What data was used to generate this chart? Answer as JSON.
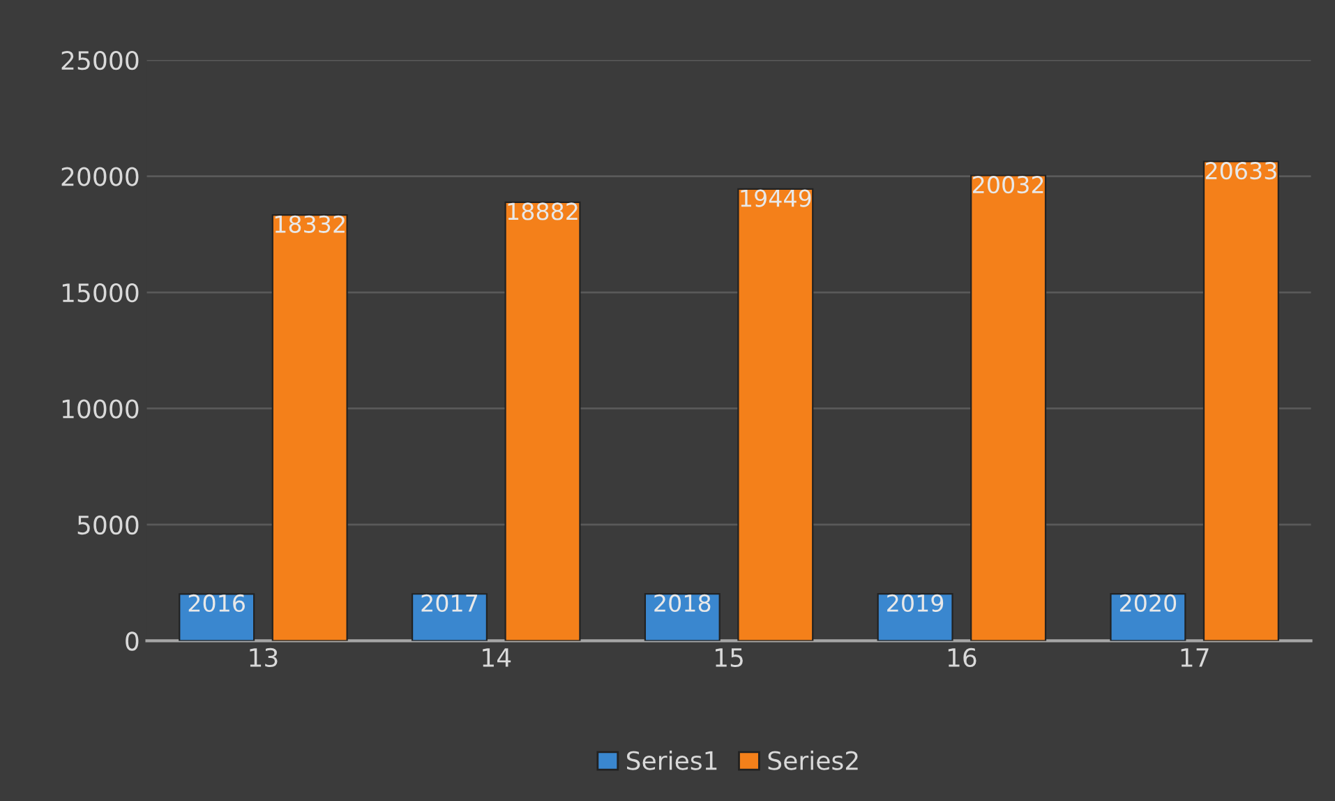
{
  "chart_data": {
    "type": "bar",
    "categories": [
      "13",
      "14",
      "15",
      "16",
      "17"
    ],
    "series": [
      {
        "name": "Series1",
        "color": "#3a87cf",
        "values": [
          2016,
          2017,
          2018,
          2019,
          2020
        ]
      },
      {
        "name": "Series2",
        "color": "#f4801a",
        "values": [
          18332,
          18882,
          19449,
          20032,
          20633
        ]
      }
    ],
    "ylim": [
      0,
      25000
    ],
    "yticks": [
      0,
      5000,
      10000,
      15000,
      20000,
      25000
    ],
    "grid": "y",
    "legend": "bottom",
    "data_labels": true
  }
}
